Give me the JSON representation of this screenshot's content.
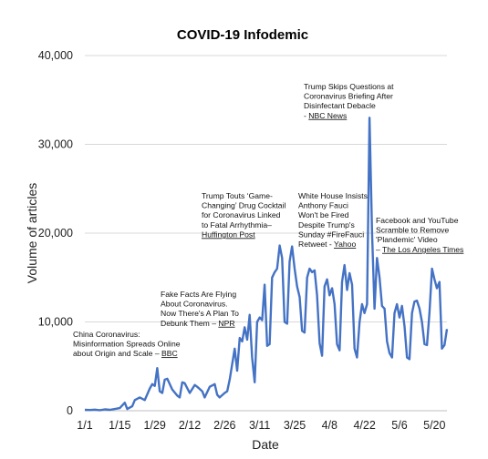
{
  "chart_data": {
    "type": "line",
    "title": "COVID-19 Infodemic",
    "xlabel": "Date",
    "ylabel": "Volume of articles",
    "ylim": [
      0,
      40000
    ],
    "yticks": [
      0,
      10000,
      20000,
      30000,
      40000
    ],
    "ytick_labels": [
      "0",
      "10,000",
      "20,000",
      "30,000",
      "40,000"
    ],
    "xlim": [
      "2020-01-01",
      "2020-05-25"
    ],
    "xticks": [
      "2020-01-01",
      "2020-01-15",
      "2020-01-29",
      "2020-02-12",
      "2020-02-26",
      "2020-03-11",
      "2020-03-25",
      "2020-04-08",
      "2020-04-22",
      "2020-05-06",
      "2020-05-20"
    ],
    "xtick_labels": [
      "1/1",
      "1/15",
      "1/29",
      "2/12",
      "2/26",
      "3/11",
      "3/25",
      "4/8",
      "4/22",
      "5/6",
      "5/20"
    ],
    "grid": "horizontal",
    "line_color": "#4472c4",
    "series": [
      {
        "values": [
          [
            "2020-01-01",
            100
          ],
          [
            "2020-01-03",
            80
          ],
          [
            "2020-01-05",
            120
          ],
          [
            "2020-01-07",
            60
          ],
          [
            "2020-01-09",
            150
          ],
          [
            "2020-01-11",
            100
          ],
          [
            "2020-01-13",
            200
          ],
          [
            "2020-01-15",
            300
          ],
          [
            "2020-01-17",
            900
          ],
          [
            "2020-01-18",
            200
          ],
          [
            "2020-01-20",
            500
          ],
          [
            "2020-01-21",
            1200
          ],
          [
            "2020-01-23",
            1500
          ],
          [
            "2020-01-25",
            1200
          ],
          [
            "2020-01-27",
            2500
          ],
          [
            "2020-01-28",
            3000
          ],
          [
            "2020-01-29",
            2800
          ],
          [
            "2020-01-30",
            4800
          ],
          [
            "2020-01-31",
            2200
          ],
          [
            "2020-02-01",
            2000
          ],
          [
            "2020-02-02",
            3500
          ],
          [
            "2020-02-03",
            3600
          ],
          [
            "2020-02-05",
            2400
          ],
          [
            "2020-02-07",
            1700
          ],
          [
            "2020-02-08",
            1500
          ],
          [
            "2020-02-09",
            3200
          ],
          [
            "2020-02-10",
            3100
          ],
          [
            "2020-02-12",
            2000
          ],
          [
            "2020-02-14",
            2900
          ],
          [
            "2020-02-15",
            2700
          ],
          [
            "2020-02-17",
            2200
          ],
          [
            "2020-02-18",
            1500
          ],
          [
            "2020-02-20",
            2700
          ],
          [
            "2020-02-22",
            3000
          ],
          [
            "2020-02-23",
            1800
          ],
          [
            "2020-02-24",
            1500
          ],
          [
            "2020-02-26",
            2000
          ],
          [
            "2020-02-27",
            2200
          ],
          [
            "2020-02-28",
            3500
          ],
          [
            "2020-03-01",
            7000
          ],
          [
            "2020-03-02",
            4500
          ],
          [
            "2020-03-03",
            8200
          ],
          [
            "2020-03-04",
            7800
          ],
          [
            "2020-03-05",
            9400
          ],
          [
            "2020-03-06",
            8000
          ],
          [
            "2020-03-07",
            10800
          ],
          [
            "2020-03-08",
            6000
          ],
          [
            "2020-03-09",
            3200
          ],
          [
            "2020-03-10",
            10000
          ],
          [
            "2020-03-11",
            10500
          ],
          [
            "2020-03-12",
            10200
          ],
          [
            "2020-03-13",
            14200
          ],
          [
            "2020-03-14",
            7300
          ],
          [
            "2020-03-15",
            7500
          ],
          [
            "2020-03-16",
            15000
          ],
          [
            "2020-03-17",
            15600
          ],
          [
            "2020-03-18",
            16000
          ],
          [
            "2020-03-19",
            18600
          ],
          [
            "2020-03-20",
            17200
          ],
          [
            "2020-03-21",
            10000
          ],
          [
            "2020-03-22",
            9800
          ],
          [
            "2020-03-23",
            16800
          ],
          [
            "2020-03-24",
            18500
          ],
          [
            "2020-03-25",
            16000
          ],
          [
            "2020-03-26",
            14000
          ],
          [
            "2020-03-27",
            12800
          ],
          [
            "2020-03-28",
            9000
          ],
          [
            "2020-03-29",
            8800
          ],
          [
            "2020-03-30",
            15000
          ],
          [
            "2020-03-31",
            16000
          ],
          [
            "2020-04-01",
            15600
          ],
          [
            "2020-04-02",
            15800
          ],
          [
            "2020-04-03",
            13000
          ],
          [
            "2020-04-04",
            7600
          ],
          [
            "2020-04-05",
            6200
          ],
          [
            "2020-04-06",
            14000
          ],
          [
            "2020-04-07",
            14800
          ],
          [
            "2020-04-08",
            13000
          ],
          [
            "2020-04-09",
            13800
          ],
          [
            "2020-04-10",
            12000
          ],
          [
            "2020-04-11",
            7500
          ],
          [
            "2020-04-12",
            6800
          ],
          [
            "2020-04-13",
            14500
          ],
          [
            "2020-04-14",
            16400
          ],
          [
            "2020-04-15",
            13600
          ],
          [
            "2020-04-16",
            15500
          ],
          [
            "2020-04-17",
            14200
          ],
          [
            "2020-04-18",
            7000
          ],
          [
            "2020-04-19",
            6000
          ],
          [
            "2020-04-20",
            10000
          ],
          [
            "2020-04-21",
            12000
          ],
          [
            "2020-04-22",
            11000
          ],
          [
            "2020-04-23",
            12000
          ],
          [
            "2020-04-24",
            33000
          ],
          [
            "2020-04-25",
            20000
          ],
          [
            "2020-04-26",
            11500
          ],
          [
            "2020-04-27",
            17200
          ],
          [
            "2020-04-28",
            15000
          ],
          [
            "2020-04-29",
            11800
          ],
          [
            "2020-04-30",
            11500
          ],
          [
            "2020-05-01",
            7800
          ],
          [
            "2020-05-02",
            6500
          ],
          [
            "2020-05-03",
            6000
          ],
          [
            "2020-05-04",
            11000
          ],
          [
            "2020-05-05",
            12000
          ],
          [
            "2020-05-06",
            10500
          ],
          [
            "2020-05-07",
            11800
          ],
          [
            "2020-05-08",
            9500
          ],
          [
            "2020-05-09",
            6000
          ],
          [
            "2020-05-10",
            5800
          ],
          [
            "2020-05-11",
            11000
          ],
          [
            "2020-05-12",
            12300
          ],
          [
            "2020-05-13",
            12400
          ],
          [
            "2020-05-14",
            11500
          ],
          [
            "2020-05-15",
            10000
          ],
          [
            "2020-05-16",
            7500
          ],
          [
            "2020-05-17",
            7400
          ],
          [
            "2020-05-18",
            11000
          ],
          [
            "2020-05-19",
            16000
          ],
          [
            "2020-05-20",
            14800
          ],
          [
            "2020-05-21",
            13800
          ],
          [
            "2020-05-22",
            14500
          ],
          [
            "2020-05-23",
            7000
          ],
          [
            "2020-05-24",
            7400
          ],
          [
            "2020-05-25",
            9200
          ]
        ]
      }
    ],
    "annotations": [
      {
        "lines": [
          "China Coronavirus:",
          "Misinformation Spreads Online"
        ],
        "last_line": "about Origin and Scale – ",
        "source": "BBC"
      },
      {
        "lines": [
          "Fake Facts Are Flying",
          "About Coronavirus.",
          "Now There's A Plan To"
        ],
        "last_line": "Debunk Them – ",
        "source": "NPR"
      },
      {
        "lines": [
          "Trump Touts ‘Game-",
          "Changing’ Drug Cocktail",
          "for Coronavirus Linked",
          "to Fatal Arrhythmia–"
        ],
        "last_line": "",
        "source": "Huffington Post"
      },
      {
        "lines": [
          "White House Insists",
          "Anthony Fauci",
          "Won't be Fired",
          "Despite Trump's",
          "Sunday #FireFauci"
        ],
        "last_line": "Retweet - ",
        "source": "Yahoo"
      },
      {
        "lines": [
          "Trump Skips Questions at",
          "Coronavirus Briefing After",
          "Disinfectant Debacle"
        ],
        "last_line": "- ",
        "source": "NBC News"
      },
      {
        "lines": [
          "Facebook and YouTube",
          "Scramble to Remove",
          "'Plandemic' Video"
        ],
        "last_line": "– ",
        "source": "The Los Angeles Times"
      }
    ]
  }
}
